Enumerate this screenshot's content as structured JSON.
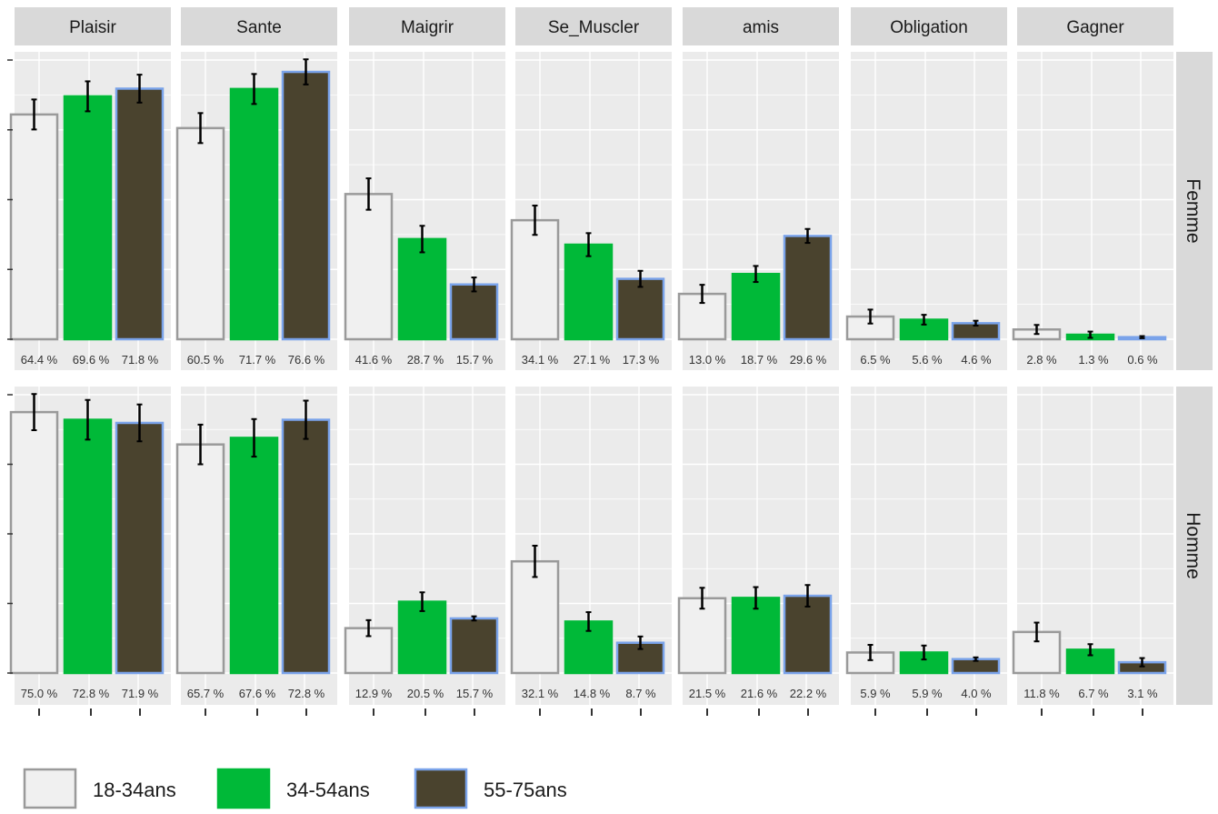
{
  "chart_data": {
    "type": "bar",
    "facets_columns": [
      "Plaisir",
      "Sante",
      "Maigrir",
      "Se_Muscler",
      "amis",
      "Obligation",
      "Gagner"
    ],
    "facets_rows": [
      "Femme",
      "Homme"
    ],
    "categories": [
      "18-34ans",
      "34-54ans",
      "55-75ans"
    ],
    "legend_position": "bottom",
    "grid": true,
    "ylim": [
      0,
      80
    ],
    "colors": {
      "18-34ans": "#f0f0f0",
      "34-54ans": "#00b938",
      "55-75ans": "#4a432e",
      "panel_bg": "#ebebeb",
      "strip_bg": "#d9d9d9",
      "error_bar": "#000000"
    },
    "panels": [
      {
        "row": "Femme",
        "column": "Plaisir",
        "values": [
          64.4,
          69.6,
          71.8
        ],
        "labels": [
          "64.4 %",
          "69.6 %",
          "71.8 %"
        ],
        "errors": [
          4.3,
          4.3,
          4.0
        ]
      },
      {
        "row": "Femme",
        "column": "Sante",
        "values": [
          60.5,
          71.7,
          76.6
        ],
        "labels": [
          "60.5 %",
          "71.7 %",
          "76.6 %"
        ],
        "errors": [
          4.3,
          4.3,
          3.6
        ]
      },
      {
        "row": "Femme",
        "column": "Maigrir",
        "values": [
          41.6,
          28.7,
          15.7
        ],
        "labels": [
          "41.6 %",
          "28.7 %",
          "15.7 %"
        ],
        "errors": [
          4.5,
          3.8,
          2.0
        ]
      },
      {
        "row": "Femme",
        "column": "Se_Muscler",
        "values": [
          34.1,
          27.1,
          17.3
        ],
        "labels": [
          "34.1 %",
          "27.1 %",
          "17.3 %"
        ],
        "errors": [
          4.2,
          3.3,
          2.3
        ]
      },
      {
        "row": "Femme",
        "column": "amis",
        "values": [
          13.0,
          18.7,
          29.6
        ],
        "labels": [
          "13.0 %",
          "18.7 %",
          "29.6 %"
        ],
        "errors": [
          2.6,
          2.3,
          2.0
        ]
      },
      {
        "row": "Femme",
        "column": "Obligation",
        "values": [
          6.5,
          5.6,
          4.6
        ],
        "labels": [
          "6.5 %",
          "5.6 %",
          "4.6 %"
        ],
        "errors": [
          2.0,
          1.4,
          0.7
        ]
      },
      {
        "row": "Femme",
        "column": "Gagner",
        "values": [
          2.8,
          1.3,
          0.6
        ],
        "labels": [
          "2.8 %",
          "1.3 %",
          "0.6 %"
        ],
        "errors": [
          1.3,
          0.9,
          0.3
        ]
      },
      {
        "row": "Homme",
        "column": "Plaisir",
        "values": [
          75.0,
          72.8,
          71.9
        ],
        "labels": [
          "75.0 %",
          "72.8 %",
          "71.9 %"
        ],
        "errors": [
          5.2,
          5.7,
          5.3
        ]
      },
      {
        "row": "Homme",
        "column": "Sante",
        "values": [
          65.7,
          67.6,
          72.8
        ],
        "labels": [
          "65.7 %",
          "67.6 %",
          "72.8 %"
        ],
        "errors": [
          5.7,
          5.4,
          5.5
        ]
      },
      {
        "row": "Homme",
        "column": "Maigrir",
        "values": [
          12.9,
          20.5,
          15.7
        ],
        "labels": [
          "12.9 %",
          "20.5 %",
          "15.7 %"
        ],
        "errors": [
          2.3,
          2.7,
          0.6
        ]
      },
      {
        "row": "Homme",
        "column": "Se_Muscler",
        "values": [
          32.1,
          14.8,
          8.7
        ],
        "labels": [
          "32.1 %",
          "14.8 %",
          "8.7 %"
        ],
        "errors": [
          4.5,
          2.7,
          1.8
        ]
      },
      {
        "row": "Homme",
        "column": "amis",
        "values": [
          21.5,
          21.6,
          22.2
        ],
        "labels": [
          "21.5 %",
          "21.6 %",
          "22.2 %"
        ],
        "errors": [
          3.0,
          3.1,
          3.1
        ]
      },
      {
        "row": "Homme",
        "column": "Obligation",
        "values": [
          5.9,
          5.9,
          4.0
        ],
        "labels": [
          "5.9 %",
          "5.9 %",
          "4.0 %"
        ],
        "errors": [
          2.2,
          2.0,
          0.5
        ]
      },
      {
        "row": "Homme",
        "column": "Gagner",
        "values": [
          11.8,
          6.7,
          3.1
        ],
        "labels": [
          "11.8 %",
          "6.7 %",
          "3.1 %"
        ],
        "errors": [
          2.7,
          1.6,
          1.2
        ]
      }
    ]
  }
}
